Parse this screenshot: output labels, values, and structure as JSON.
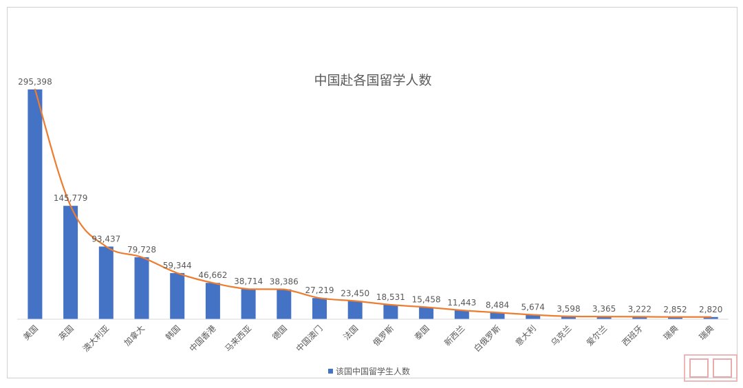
{
  "chart_data": {
    "type": "bar",
    "title": "中国赴各国留学人数",
    "categories": [
      "美国",
      "英国",
      "澳大利亚",
      "加拿大",
      "韩国",
      "中国香港",
      "马来西亚",
      "德国",
      "中国澳门",
      "法国",
      "俄罗斯",
      "泰国",
      "新西兰",
      "白俄罗斯",
      "意大利",
      "乌克兰",
      "爱尔兰",
      "西班牙",
      "瑞典",
      "瑞典"
    ],
    "series": [
      {
        "name": "该国中国留学生人数",
        "values": [
          295398,
          145779,
          93437,
          79728,
          59344,
          46662,
          38714,
          38386,
          27219,
          23450,
          18531,
          15458,
          11443,
          8484,
          5674,
          3598,
          3365,
          3222,
          2852,
          2820
        ],
        "labels": [
          "295,398",
          "145,779",
          "93,437",
          "79,728",
          "59,344",
          "46,662",
          "38,714",
          "38,386",
          "27,219",
          "23,450",
          "18,531",
          "15,458",
          "11,443",
          "8,484",
          "5,674",
          "3,598",
          "3,365",
          "3,222",
          "2,852",
          "2,820"
        ],
        "color": "#4472c4"
      }
    ],
    "trend_line": {
      "type": "line",
      "color": "#ed7d31",
      "follows": "series.0.values"
    },
    "ylim": [
      0,
      295398
    ],
    "xlabel": "",
    "ylabel": "",
    "grid": false,
    "legend": "bottom-center",
    "category_label_rotation": -45
  },
  "watermark": {
    "kind": "stamp",
    "color": "#e08f8f"
  }
}
